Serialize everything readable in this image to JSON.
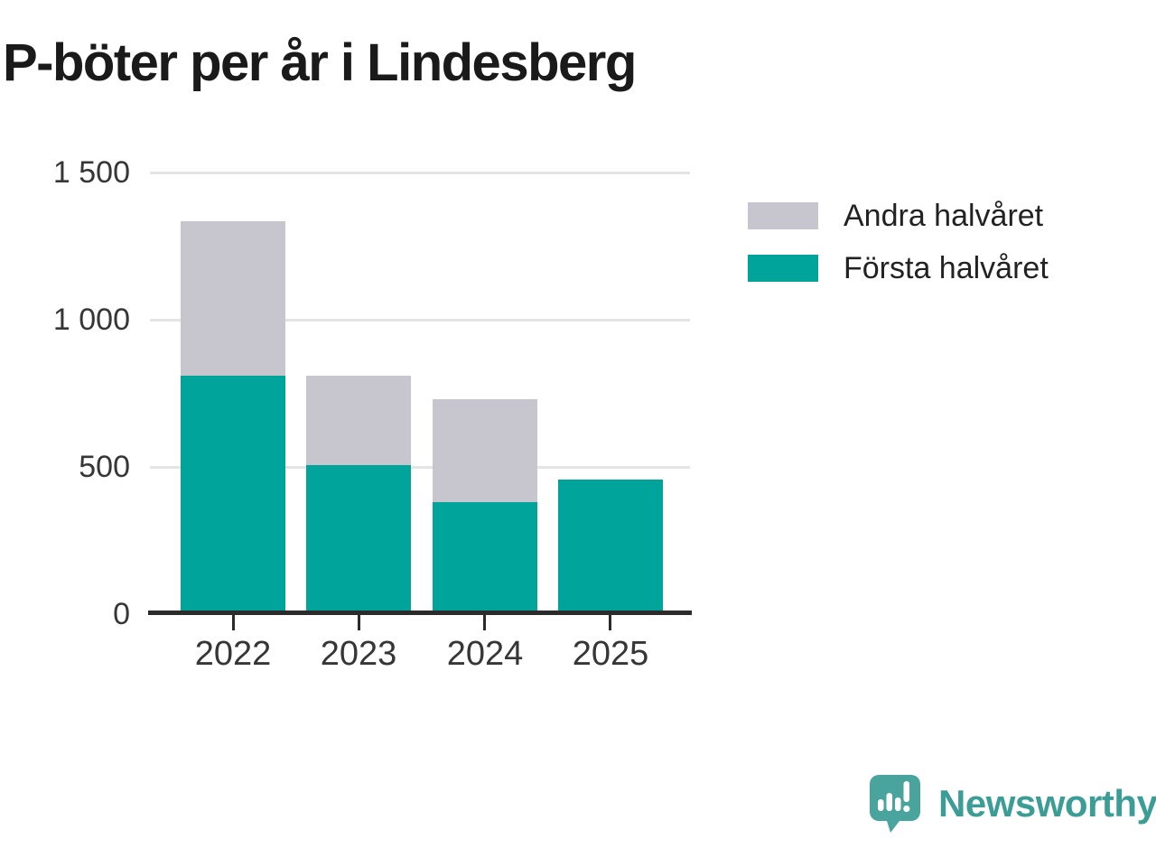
{
  "title": "P-böter per år i Lindesberg",
  "chart_data": {
    "type": "bar",
    "stacked": true,
    "title": "P-böter per år i Lindesberg",
    "categories": [
      "2022",
      "2023",
      "2024",
      "2025"
    ],
    "series": [
      {
        "name": "Första halvåret",
        "color": "#00a49a",
        "values": [
          805,
          500,
          375,
          450
        ]
      },
      {
        "name": "Andra halvåret",
        "color": "#c7c5ce",
        "values": [
          525,
          305,
          350,
          0
        ]
      }
    ],
    "ylim": [
      0,
      1500
    ],
    "yticks": [
      0,
      500,
      1000,
      1500
    ],
    "ytick_labels": [
      "0",
      "500",
      "1 000",
      "1 500"
    ],
    "grid": "horizontal",
    "legend_position": "right",
    "legend_order": [
      "Andra halvåret",
      "Första halvåret"
    ]
  },
  "legend": {
    "items": [
      {
        "label": "Andra halvåret",
        "color": "#c7c5ce"
      },
      {
        "label": "Första halvåret",
        "color": "#00a49a"
      }
    ]
  },
  "branding": {
    "logo_text": "Newsworthy",
    "logo_icon": "newsworthy-bubble-chart-icon"
  },
  "colors": {
    "first_half": "#00a49a",
    "second_half": "#c7c5ce",
    "gridline": "#e4e4e4",
    "axis": "#2b2b2b",
    "tick_text": "#363636",
    "title_text": "#1a1a1a",
    "logo_bubble": "#4aa49e",
    "logo_wordmark": "#3c9d96"
  }
}
